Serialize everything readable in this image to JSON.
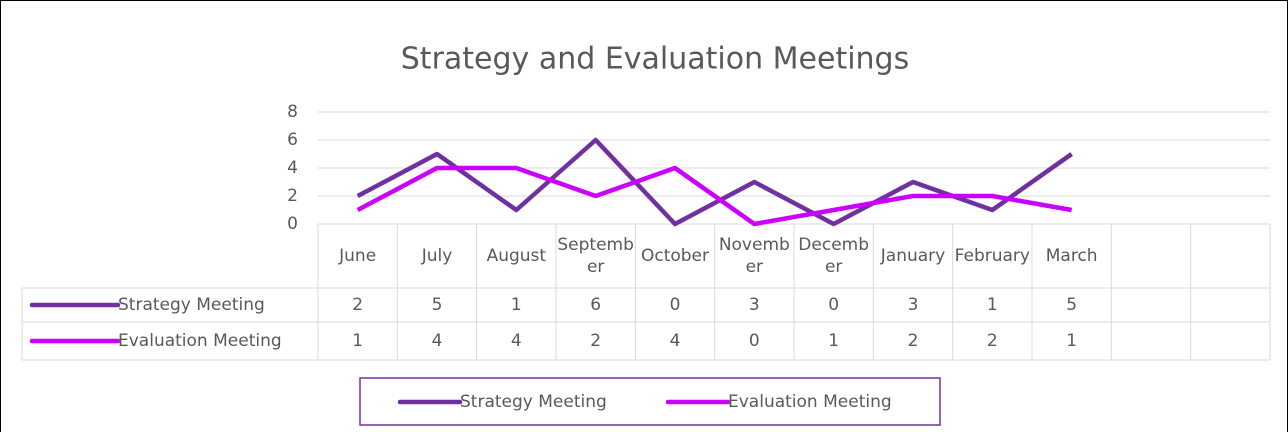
{
  "chart_data": {
    "type": "line",
    "title": "Strategy and Evaluation Meetings",
    "categories": [
      "June",
      "July",
      "August",
      "September",
      "October",
      "November",
      "December",
      "January",
      "February",
      "March",
      null,
      null
    ],
    "series": [
      {
        "name": "Strategy Meeting",
        "color": "#7030a0",
        "values": [
          2,
          5,
          1,
          6,
          0,
          3,
          0,
          3,
          1,
          5,
          null,
          null
        ]
      },
      {
        "name": "Evaluation Meeting",
        "color": "#cc00ff",
        "values": [
          1,
          4,
          4,
          2,
          4,
          0,
          1,
          2,
          2,
          1,
          null,
          null
        ]
      }
    ],
    "ylim": [
      0,
      8
    ],
    "yticks": [
      0,
      2,
      4,
      6,
      8
    ],
    "grid": true,
    "legend": "bottom",
    "data_table": true
  }
}
